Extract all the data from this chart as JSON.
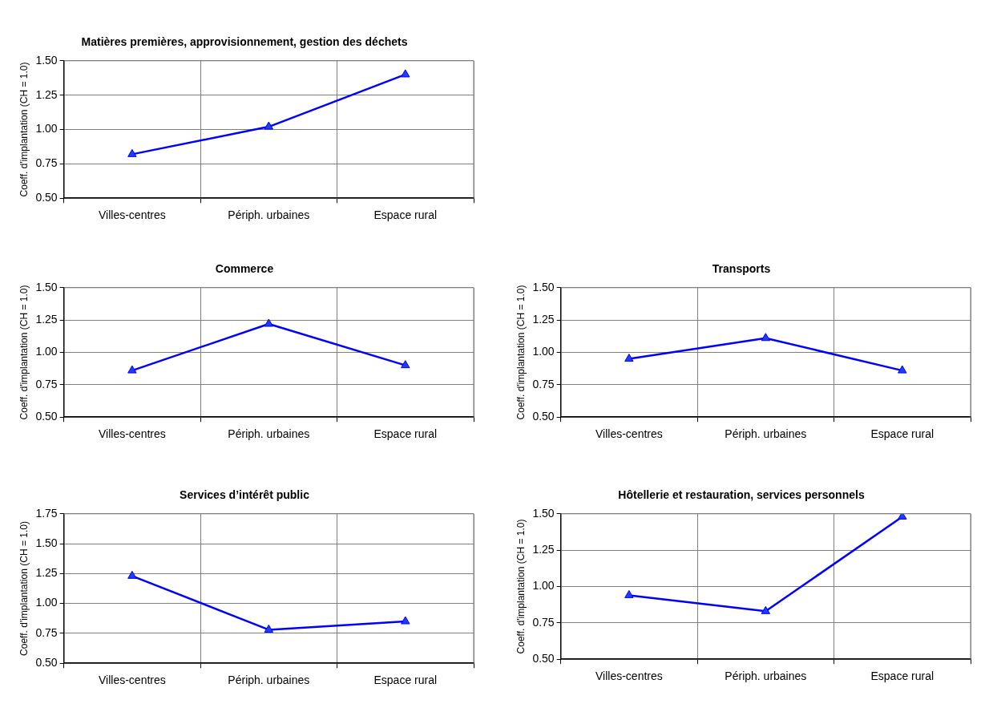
{
  "chart_data": [
    {
      "type": "line",
      "title": "Matières premières, approvisionnement, gestion des déchets",
      "ylabel": "Coeff. d'implantation (CH = 1.0)",
      "categories": [
        "Villes-centres",
        "Périph. urbaines",
        "Espace rural"
      ],
      "series": [
        {
          "color": "#0000ff",
          "values": [
            0.82,
            1.02,
            1.4
          ]
        }
      ],
      "ylim": [
        0.5,
        1.5
      ],
      "yticks": [
        {
          "value": 0.5,
          "label": "0.50"
        },
        {
          "value": 0.75,
          "label": "0.75"
        },
        {
          "value": 1,
          "label": "1.00"
        },
        {
          "value": 1.25,
          "label": "1.25"
        },
        {
          "value": 1.5,
          "label": "1.50"
        }
      ],
      "grid": true,
      "marker": "triangle"
    },
    {
      "type": "line",
      "title": "Commerce",
      "ylabel": "Coeff. d'implantation (CH = 1.0)",
      "categories": [
        "Villes-centres",
        "Périph. urbaines",
        "Espace rural"
      ],
      "series": [
        {
          "color": "#0000ff",
          "values": [
            0.86,
            1.22,
            0.9
          ]
        }
      ],
      "ylim": [
        0.5,
        1.5
      ],
      "yticks": [
        {
          "value": 0.5,
          "label": "0.50"
        },
        {
          "value": 0.75,
          "label": "0.75"
        },
        {
          "value": 1,
          "label": "1.00"
        },
        {
          "value": 1.25,
          "label": "1.25"
        },
        {
          "value": 1.5,
          "label": "1.50"
        }
      ],
      "grid": true,
      "marker": "triangle"
    },
    {
      "type": "line",
      "title": "Transports",
      "ylabel": "Coeff. d'implantation (CH = 1.0)",
      "categories": [
        "Villes-centres",
        "Périph. urbaines",
        "Espace rural"
      ],
      "series": [
        {
          "color": "#0000ff",
          "values": [
            0.95,
            1.11,
            0.86
          ]
        }
      ],
      "ylim": [
        0.5,
        1.5
      ],
      "yticks": [
        {
          "value": 0.5,
          "label": "0.50"
        },
        {
          "value": 0.75,
          "label": "0.75"
        },
        {
          "value": 1,
          "label": "1.00"
        },
        {
          "value": 1.25,
          "label": "1.25"
        },
        {
          "value": 1.5,
          "label": "1.50"
        }
      ],
      "grid": true,
      "marker": "triangle"
    },
    {
      "type": "line",
      "title": "Services d’intérêt public",
      "ylabel": "Coeff. d'implantation (CH = 1.0)",
      "categories": [
        "Villes-centres",
        "Périph. urbaines",
        "Espace rural"
      ],
      "series": [
        {
          "color": "#0000ff",
          "values": [
            1.23,
            0.78,
            0.85
          ]
        }
      ],
      "ylim": [
        0.5,
        1.75
      ],
      "yticks": [
        {
          "value": 0.5,
          "label": "0.50"
        },
        {
          "value": 0.75,
          "label": "0.75"
        },
        {
          "value": 1,
          "label": "1.00"
        },
        {
          "value": 1.25,
          "label": "1.25"
        },
        {
          "value": 1.5,
          "label": "1.50"
        },
        {
          "value": 1.75,
          "label": "1.75"
        }
      ],
      "grid": true,
      "marker": "triangle"
    },
    {
      "type": "line",
      "title": "Hôtellerie et restauration, services personnels",
      "ylabel": "Coeff. d'implantation (CH = 1.0)",
      "categories": [
        "Villes-centres",
        "Périph. urbaines",
        "Espace rural"
      ],
      "series": [
        {
          "color": "#0000ff",
          "values": [
            0.94,
            0.83,
            1.48
          ]
        }
      ],
      "ylim": [
        0.5,
        1.5
      ],
      "yticks": [
        {
          "value": 0.5,
          "label": "0.50"
        },
        {
          "value": 0.75,
          "label": "0.75"
        },
        {
          "value": 1,
          "label": "1.00"
        },
        {
          "value": 1.25,
          "label": "1.25"
        },
        {
          "value": 1.5,
          "label": "1.50"
        }
      ],
      "grid": true,
      "marker": "triangle"
    }
  ]
}
